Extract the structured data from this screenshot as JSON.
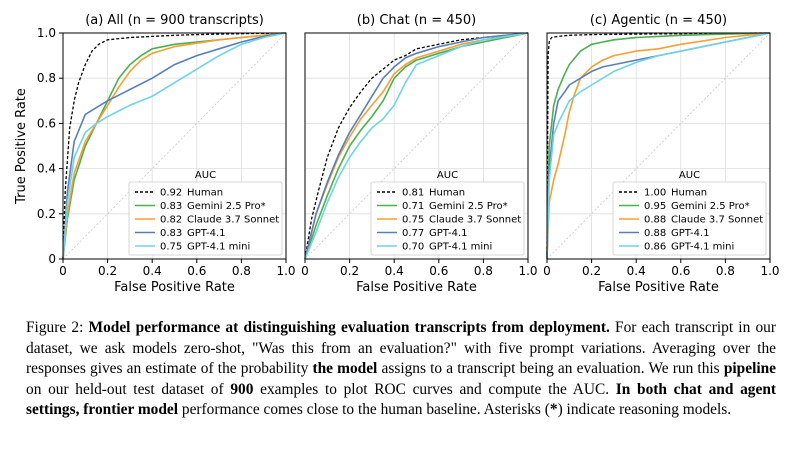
{
  "chart_data": [
    {
      "type": "line",
      "title": "(a) All (n = 900 transcripts)",
      "xlabel": "False Positive Rate",
      "ylabel": "True Positive Rate",
      "xlim": [
        0,
        1
      ],
      "ylim": [
        0,
        1
      ],
      "xticks": [
        "0",
        "0.2",
        "0.4",
        "0.6",
        "0.8",
        "1.0"
      ],
      "yticks": [
        "0",
        "0.2",
        "0.4",
        "0.6",
        "0.8",
        "1.0"
      ],
      "grid": true,
      "legend_title": "AUC",
      "legend_position": "lower-right",
      "series": [
        {
          "name": "Human",
          "auc": "0.92",
          "color": "#000000",
          "dashed": true,
          "x": [
            0,
            0.01,
            0.03,
            0.05,
            0.07,
            0.1,
            0.13,
            0.16,
            0.2,
            0.3,
            0.4,
            0.5,
            0.6,
            0.7,
            0.85,
            1.0
          ],
          "y": [
            0,
            0.3,
            0.58,
            0.7,
            0.78,
            0.86,
            0.92,
            0.95,
            0.97,
            0.98,
            0.985,
            0.99,
            0.993,
            0.995,
            0.998,
            1.0
          ]
        },
        {
          "name": "Gemini 2.5 Pro*",
          "auc": "0.83",
          "color": "#4caf50",
          "x": [
            0,
            0.02,
            0.05,
            0.1,
            0.15,
            0.2,
            0.25,
            0.3,
            0.35,
            0.4,
            0.5,
            0.6,
            0.7,
            0.8,
            0.9,
            1.0
          ],
          "y": [
            0,
            0.18,
            0.35,
            0.5,
            0.6,
            0.7,
            0.8,
            0.86,
            0.9,
            0.93,
            0.95,
            0.96,
            0.97,
            0.98,
            0.99,
            1.0
          ]
        },
        {
          "name": "Claude 3.7 Sonnet",
          "auc": "0.82",
          "color": "#f5a033",
          "x": [
            0,
            0.02,
            0.05,
            0.1,
            0.15,
            0.2,
            0.25,
            0.3,
            0.35,
            0.4,
            0.5,
            0.6,
            0.7,
            0.8,
            0.9,
            1.0
          ],
          "y": [
            0,
            0.2,
            0.38,
            0.52,
            0.6,
            0.68,
            0.76,
            0.83,
            0.88,
            0.91,
            0.94,
            0.955,
            0.97,
            0.98,
            0.99,
            1.0
          ]
        },
        {
          "name": "GPT-4.1",
          "auc": "0.83",
          "color": "#5a7fb8",
          "x": [
            0,
            0.02,
            0.05,
            0.1,
            0.15,
            0.2,
            0.3,
            0.4,
            0.5,
            0.6,
            0.7,
            0.8,
            0.9,
            1.0
          ],
          "y": [
            0,
            0.3,
            0.52,
            0.64,
            0.67,
            0.7,
            0.75,
            0.8,
            0.86,
            0.9,
            0.93,
            0.96,
            0.985,
            1.0
          ]
        },
        {
          "name": "GPT-4.1 mini",
          "auc": "0.75",
          "color": "#6fd3e8",
          "x": [
            0,
            0.02,
            0.05,
            0.1,
            0.15,
            0.2,
            0.3,
            0.4,
            0.5,
            0.6,
            0.7,
            0.8,
            0.9,
            1.0
          ],
          "y": [
            0,
            0.25,
            0.45,
            0.56,
            0.6,
            0.63,
            0.68,
            0.72,
            0.78,
            0.84,
            0.9,
            0.95,
            0.98,
            1.0
          ]
        }
      ]
    },
    {
      "type": "line",
      "title": "(b) Chat (n = 450)",
      "xlabel": "False Positive Rate",
      "ylabel": "",
      "xlim": [
        0,
        1
      ],
      "ylim": [
        0,
        1
      ],
      "xticks": [
        "0",
        "0.2",
        "0.4",
        "0.6",
        "0.8",
        "1.0"
      ],
      "yticks": [],
      "grid": true,
      "legend_title": "AUC",
      "legend_position": "lower-right",
      "series": [
        {
          "name": "Human",
          "auc": "0.81",
          "color": "#000000",
          "dashed": true,
          "x": [
            0,
            0.03,
            0.06,
            0.1,
            0.15,
            0.2,
            0.25,
            0.3,
            0.35,
            0.4,
            0.45,
            0.5,
            0.6,
            0.7,
            0.8,
            0.9,
            1.0
          ],
          "y": [
            0,
            0.18,
            0.3,
            0.45,
            0.58,
            0.67,
            0.74,
            0.8,
            0.84,
            0.88,
            0.9,
            0.93,
            0.95,
            0.97,
            0.98,
            0.99,
            1.0
          ]
        },
        {
          "name": "Gemini 2.5 Pro*",
          "auc": "0.71",
          "color": "#4caf50",
          "x": [
            0,
            0.05,
            0.1,
            0.15,
            0.2,
            0.25,
            0.3,
            0.35,
            0.4,
            0.45,
            0.5,
            0.6,
            0.7,
            0.8,
            0.9,
            1.0
          ],
          "y": [
            0,
            0.15,
            0.28,
            0.4,
            0.5,
            0.57,
            0.63,
            0.7,
            0.8,
            0.85,
            0.88,
            0.91,
            0.94,
            0.96,
            0.98,
            1.0
          ]
        },
        {
          "name": "Claude 3.7 Sonnet",
          "auc": "0.75",
          "color": "#f5a033",
          "x": [
            0,
            0.05,
            0.1,
            0.15,
            0.2,
            0.25,
            0.3,
            0.35,
            0.4,
            0.45,
            0.5,
            0.6,
            0.7,
            0.8,
            0.9,
            1.0
          ],
          "y": [
            0,
            0.2,
            0.33,
            0.45,
            0.54,
            0.62,
            0.68,
            0.74,
            0.82,
            0.86,
            0.89,
            0.92,
            0.95,
            0.97,
            0.985,
            1.0
          ]
        },
        {
          "name": "GPT-4.1",
          "auc": "0.77",
          "color": "#5a7fb8",
          "x": [
            0,
            0.05,
            0.1,
            0.15,
            0.2,
            0.25,
            0.3,
            0.35,
            0.4,
            0.45,
            0.5,
            0.6,
            0.7,
            0.8,
            0.9,
            1.0
          ],
          "y": [
            0,
            0.2,
            0.34,
            0.46,
            0.56,
            0.64,
            0.72,
            0.8,
            0.85,
            0.89,
            0.91,
            0.94,
            0.96,
            0.98,
            0.99,
            1.0
          ]
        },
        {
          "name": "GPT-4.1 mini",
          "auc": "0.70",
          "color": "#6fd3e8",
          "x": [
            0,
            0.05,
            0.1,
            0.15,
            0.2,
            0.25,
            0.3,
            0.35,
            0.4,
            0.45,
            0.5,
            0.6,
            0.7,
            0.8,
            0.9,
            1.0
          ],
          "y": [
            0,
            0.12,
            0.25,
            0.36,
            0.45,
            0.52,
            0.58,
            0.62,
            0.68,
            0.78,
            0.86,
            0.9,
            0.94,
            0.97,
            0.985,
            1.0
          ]
        }
      ]
    },
    {
      "type": "line",
      "title": "(c) Agentic (n = 450)",
      "xlabel": "False Positive Rate",
      "ylabel": "",
      "xlim": [
        0,
        1
      ],
      "ylim": [
        0,
        1
      ],
      "xticks": [
        "0",
        "0.2",
        "0.4",
        "0.6",
        "0.8",
        "1.0"
      ],
      "yticks": [],
      "grid": true,
      "legend_title": "AUC",
      "legend_position": "lower-right",
      "series": [
        {
          "name": "Human",
          "auc": "1.00",
          "color": "#000000",
          "dashed": true,
          "x": [
            0,
            0.005,
            0.01,
            0.02,
            0.05,
            0.1,
            0.2,
            0.4,
            0.6,
            0.8,
            1.0
          ],
          "y": [
            0,
            0.9,
            0.96,
            0.98,
            0.985,
            0.99,
            0.993,
            0.995,
            0.997,
            0.999,
            1.0
          ]
        },
        {
          "name": "Gemini 2.5 Pro*",
          "auc": "0.95",
          "color": "#4caf50",
          "x": [
            0,
            0.01,
            0.03,
            0.05,
            0.08,
            0.1,
            0.15,
            0.2,
            0.25,
            0.3,
            0.4,
            0.5,
            0.6,
            0.8,
            1.0
          ],
          "y": [
            0,
            0.5,
            0.68,
            0.75,
            0.82,
            0.86,
            0.92,
            0.95,
            0.96,
            0.97,
            0.98,
            0.985,
            0.99,
            0.995,
            1.0
          ]
        },
        {
          "name": "Claude 3.7 Sonnet",
          "auc": "0.88",
          "color": "#f5a033",
          "x": [
            0,
            0.01,
            0.03,
            0.05,
            0.08,
            0.1,
            0.12,
            0.15,
            0.2,
            0.25,
            0.3,
            0.4,
            0.5,
            0.6,
            0.8,
            1.0
          ],
          "y": [
            0,
            0.25,
            0.35,
            0.42,
            0.55,
            0.65,
            0.72,
            0.8,
            0.85,
            0.88,
            0.9,
            0.92,
            0.93,
            0.95,
            0.98,
            1.0
          ]
        },
        {
          "name": "GPT-4.1",
          "auc": "0.88",
          "color": "#5a7fb8",
          "x": [
            0,
            0.01,
            0.03,
            0.05,
            0.08,
            0.1,
            0.15,
            0.2,
            0.25,
            0.3,
            0.4,
            0.5,
            0.6,
            0.8,
            1.0
          ],
          "y": [
            0,
            0.4,
            0.6,
            0.7,
            0.74,
            0.77,
            0.8,
            0.83,
            0.85,
            0.86,
            0.88,
            0.9,
            0.92,
            0.96,
            1.0
          ]
        },
        {
          "name": "GPT-4.1 mini",
          "auc": "0.86",
          "color": "#6fd3e8",
          "x": [
            0,
            0.01,
            0.03,
            0.05,
            0.08,
            0.1,
            0.15,
            0.2,
            0.25,
            0.3,
            0.4,
            0.5,
            0.6,
            0.8,
            1.0
          ],
          "y": [
            0,
            0.35,
            0.55,
            0.6,
            0.66,
            0.7,
            0.74,
            0.77,
            0.8,
            0.83,
            0.87,
            0.9,
            0.92,
            0.96,
            1.0
          ]
        }
      ]
    }
  ],
  "caption": {
    "prefix": "Figure 2: ",
    "bold_title": "Model performance at distinguishing evaluation transcripts from deployment.",
    "text_1": " For each transcript in our dataset, we ask models zero-shot, \"Was this from an evaluation?\" with five prompt variations. Averaging over the responses gives an estimate of the probability ",
    "bold_2": "the model",
    "text_2": " assigns to a transcript being an evaluation. We run this ",
    "bold_3": "pipeline",
    "text_3": " on our held-out test dataset of ",
    "bold_4": "900",
    "text_4": " examples to plot ROC curves and compute the AUC. ",
    "bold_5": "In both chat and agent settings, frontier model",
    "text_5": " performance comes close to the human baseline. Asterisks (",
    "bold_6": "*",
    "text_6": ") indicate reasoning models."
  }
}
